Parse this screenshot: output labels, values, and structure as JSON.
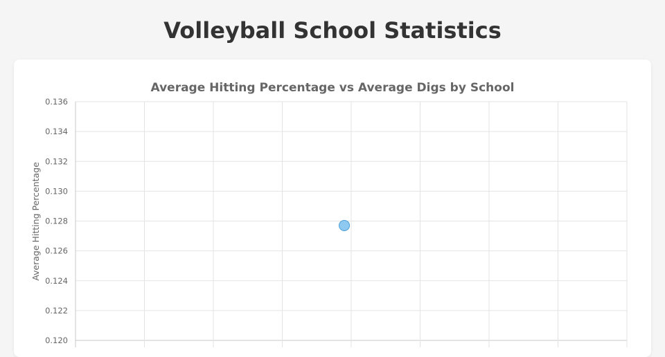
{
  "page": {
    "title": "Volleyball School Statistics"
  },
  "chart_data": {
    "type": "scatter",
    "title": "Average Hitting Percentage vs Average Digs by School",
    "xlabel": "",
    "ylabel": "Average Hitting Percentage",
    "ylim": [
      0.12,
      0.136
    ],
    "yticks": [
      "0.136",
      "0.134",
      "0.132",
      "0.130",
      "0.128",
      "0.126",
      "0.124",
      "0.122",
      "0.120"
    ],
    "x_grid_divisions": 8,
    "grid": true,
    "points": [
      {
        "x": 3.9,
        "y": 0.1277
      }
    ],
    "colors": {
      "point_fill": "#8ec9f2",
      "point_stroke": "#4a9fd8"
    }
  }
}
